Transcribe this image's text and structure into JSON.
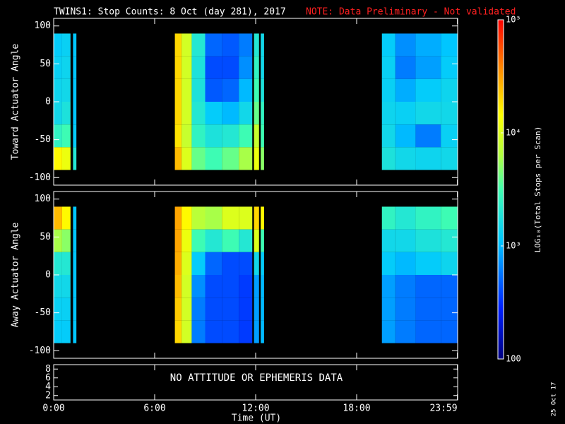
{
  "chart_data": {
    "type": "heatmap",
    "title": "TWINS1: Stop Counts:  8 Oct (day 281), 2017",
    "note": "NOTE: Data Preliminary - Not validated",
    "xlabel": "Time (UT)",
    "xlim": [
      0,
      24
    ],
    "xticks": [
      {
        "value": 0,
        "label": "0:00"
      },
      {
        "value": 6,
        "label": "6:00"
      },
      {
        "value": 12,
        "label": "12:00"
      },
      {
        "value": 18,
        "label": "18:00"
      },
      {
        "value": 23.983,
        "label": "23:59"
      }
    ],
    "time_bins": [
      [
        0,
        0.5
      ],
      [
        0.5,
        1.0
      ],
      [
        1.15,
        1.35
      ],
      [
        7.2,
        7.6
      ],
      [
        7.6,
        8.2
      ],
      [
        8.2,
        9.0
      ],
      [
        9.0,
        10.0
      ],
      [
        10.0,
        11.0
      ],
      [
        11.0,
        11.8
      ],
      [
        11.9,
        12.2
      ],
      [
        12.3,
        12.5
      ],
      [
        19.5,
        20.3
      ],
      [
        20.3,
        21.5
      ],
      [
        21.5,
        23.0
      ],
      [
        23.0,
        24.0
      ]
    ],
    "angle_bins": [
      [
        90,
        60
      ],
      [
        60,
        30
      ],
      [
        30,
        0
      ],
      [
        0,
        -30
      ],
      [
        -30,
        -60
      ],
      [
        -60,
        -90
      ]
    ],
    "panels": [
      {
        "ylabel": "Toward Actuator Angle",
        "ylim": [
          -110,
          110
        ],
        "yticks": [
          -100,
          -50,
          0,
          50,
          100
        ],
        "values": [
          [
            1200,
            1300,
            1400,
            1500,
            2500,
            15000
          ],
          [
            1300,
            1400,
            1500,
            1800,
            3000,
            12000
          ],
          [
            1100,
            1100,
            1100,
            1100,
            1200,
            2000
          ],
          [
            20000,
            20000,
            20000,
            20000,
            18000,
            25000
          ],
          [
            9000,
            9000,
            9000,
            9000,
            8000,
            10000
          ],
          [
            2000,
            1800,
            1800,
            2000,
            2500,
            4000
          ],
          [
            500,
            400,
            450,
            1200,
            1800,
            3000
          ],
          [
            450,
            400,
            500,
            1000,
            2000,
            4000
          ],
          [
            600,
            700,
            1000,
            1500,
            3000,
            6000
          ],
          [
            2000,
            2500,
            3000,
            4000,
            8000,
            12000
          ],
          [
            1500,
            1500,
            1800,
            2500,
            3000,
            5000
          ],
          [
            1200,
            1300,
            1300,
            1400,
            1500,
            1800
          ],
          [
            700,
            600,
            900,
            1300,
            1000,
            1500
          ],
          [
            900,
            800,
            1200,
            1500,
            600,
            1400
          ],
          [
            1100,
            1200,
            1400,
            1500,
            1300,
            1500
          ]
        ]
      },
      {
        "ylabel": "Away Actuator Angle",
        "ylim": [
          -110,
          110
        ],
        "yticks": [
          -100,
          -50,
          0,
          50,
          100
        ],
        "values": [
          [
            25000,
            6000,
            2000,
            1500,
            1300,
            1200
          ],
          [
            15000,
            5000,
            2000,
            1500,
            1300,
            1200
          ],
          [
            1100,
            1100,
            1100,
            1100,
            1100,
            1100
          ],
          [
            30000,
            30000,
            28000,
            25000,
            22000,
            20000
          ],
          [
            15000,
            12000,
            10000,
            9000,
            9000,
            9000
          ],
          [
            7000,
            3000,
            1200,
            700,
            600,
            600
          ],
          [
            6000,
            2000,
            500,
            400,
            400,
            400
          ],
          [
            10000,
            3000,
            400,
            400,
            400,
            400
          ],
          [
            10000,
            2000,
            400,
            350,
            350,
            350
          ],
          [
            20000,
            10000,
            1500,
            800,
            800,
            800
          ],
          [
            15000,
            3000,
            1200,
            1000,
            1000,
            1000
          ],
          [
            2500,
            1500,
            1200,
            800,
            800,
            800
          ],
          [
            2000,
            1500,
            1000,
            600,
            600,
            600
          ],
          [
            2500,
            1800,
            1200,
            500,
            500,
            500
          ],
          [
            3000,
            2000,
            1400,
            500,
            500,
            500
          ]
        ]
      }
    ],
    "status_panel": {
      "ylim": [
        1,
        9
      ],
      "yticks": [
        2,
        4,
        6,
        8
      ],
      "text": "NO ATTITUDE OR EPHEMERIS DATA"
    },
    "colorbar": {
      "label": "LOG₁₀(Total Stops per Scan)",
      "lim": [
        100,
        100000
      ],
      "log": true,
      "ticks": [
        {
          "value": 100,
          "label": "100"
        },
        {
          "value": 1000,
          "label": "10³"
        },
        {
          "value": 10000,
          "label": "10⁴"
        },
        {
          "value": 100000,
          "label": "10⁵"
        }
      ],
      "colormap": [
        [
          0,
          "#000080"
        ],
        [
          0.15,
          "#0020ff"
        ],
        [
          0.35,
          "#00c8ff"
        ],
        [
          0.5,
          "#40ffb0"
        ],
        [
          0.6,
          "#b0ff40"
        ],
        [
          0.72,
          "#ffff00"
        ],
        [
          0.85,
          "#ff9000"
        ],
        [
          1,
          "#ff0000"
        ]
      ]
    },
    "stamp": "25 Oct 17"
  }
}
